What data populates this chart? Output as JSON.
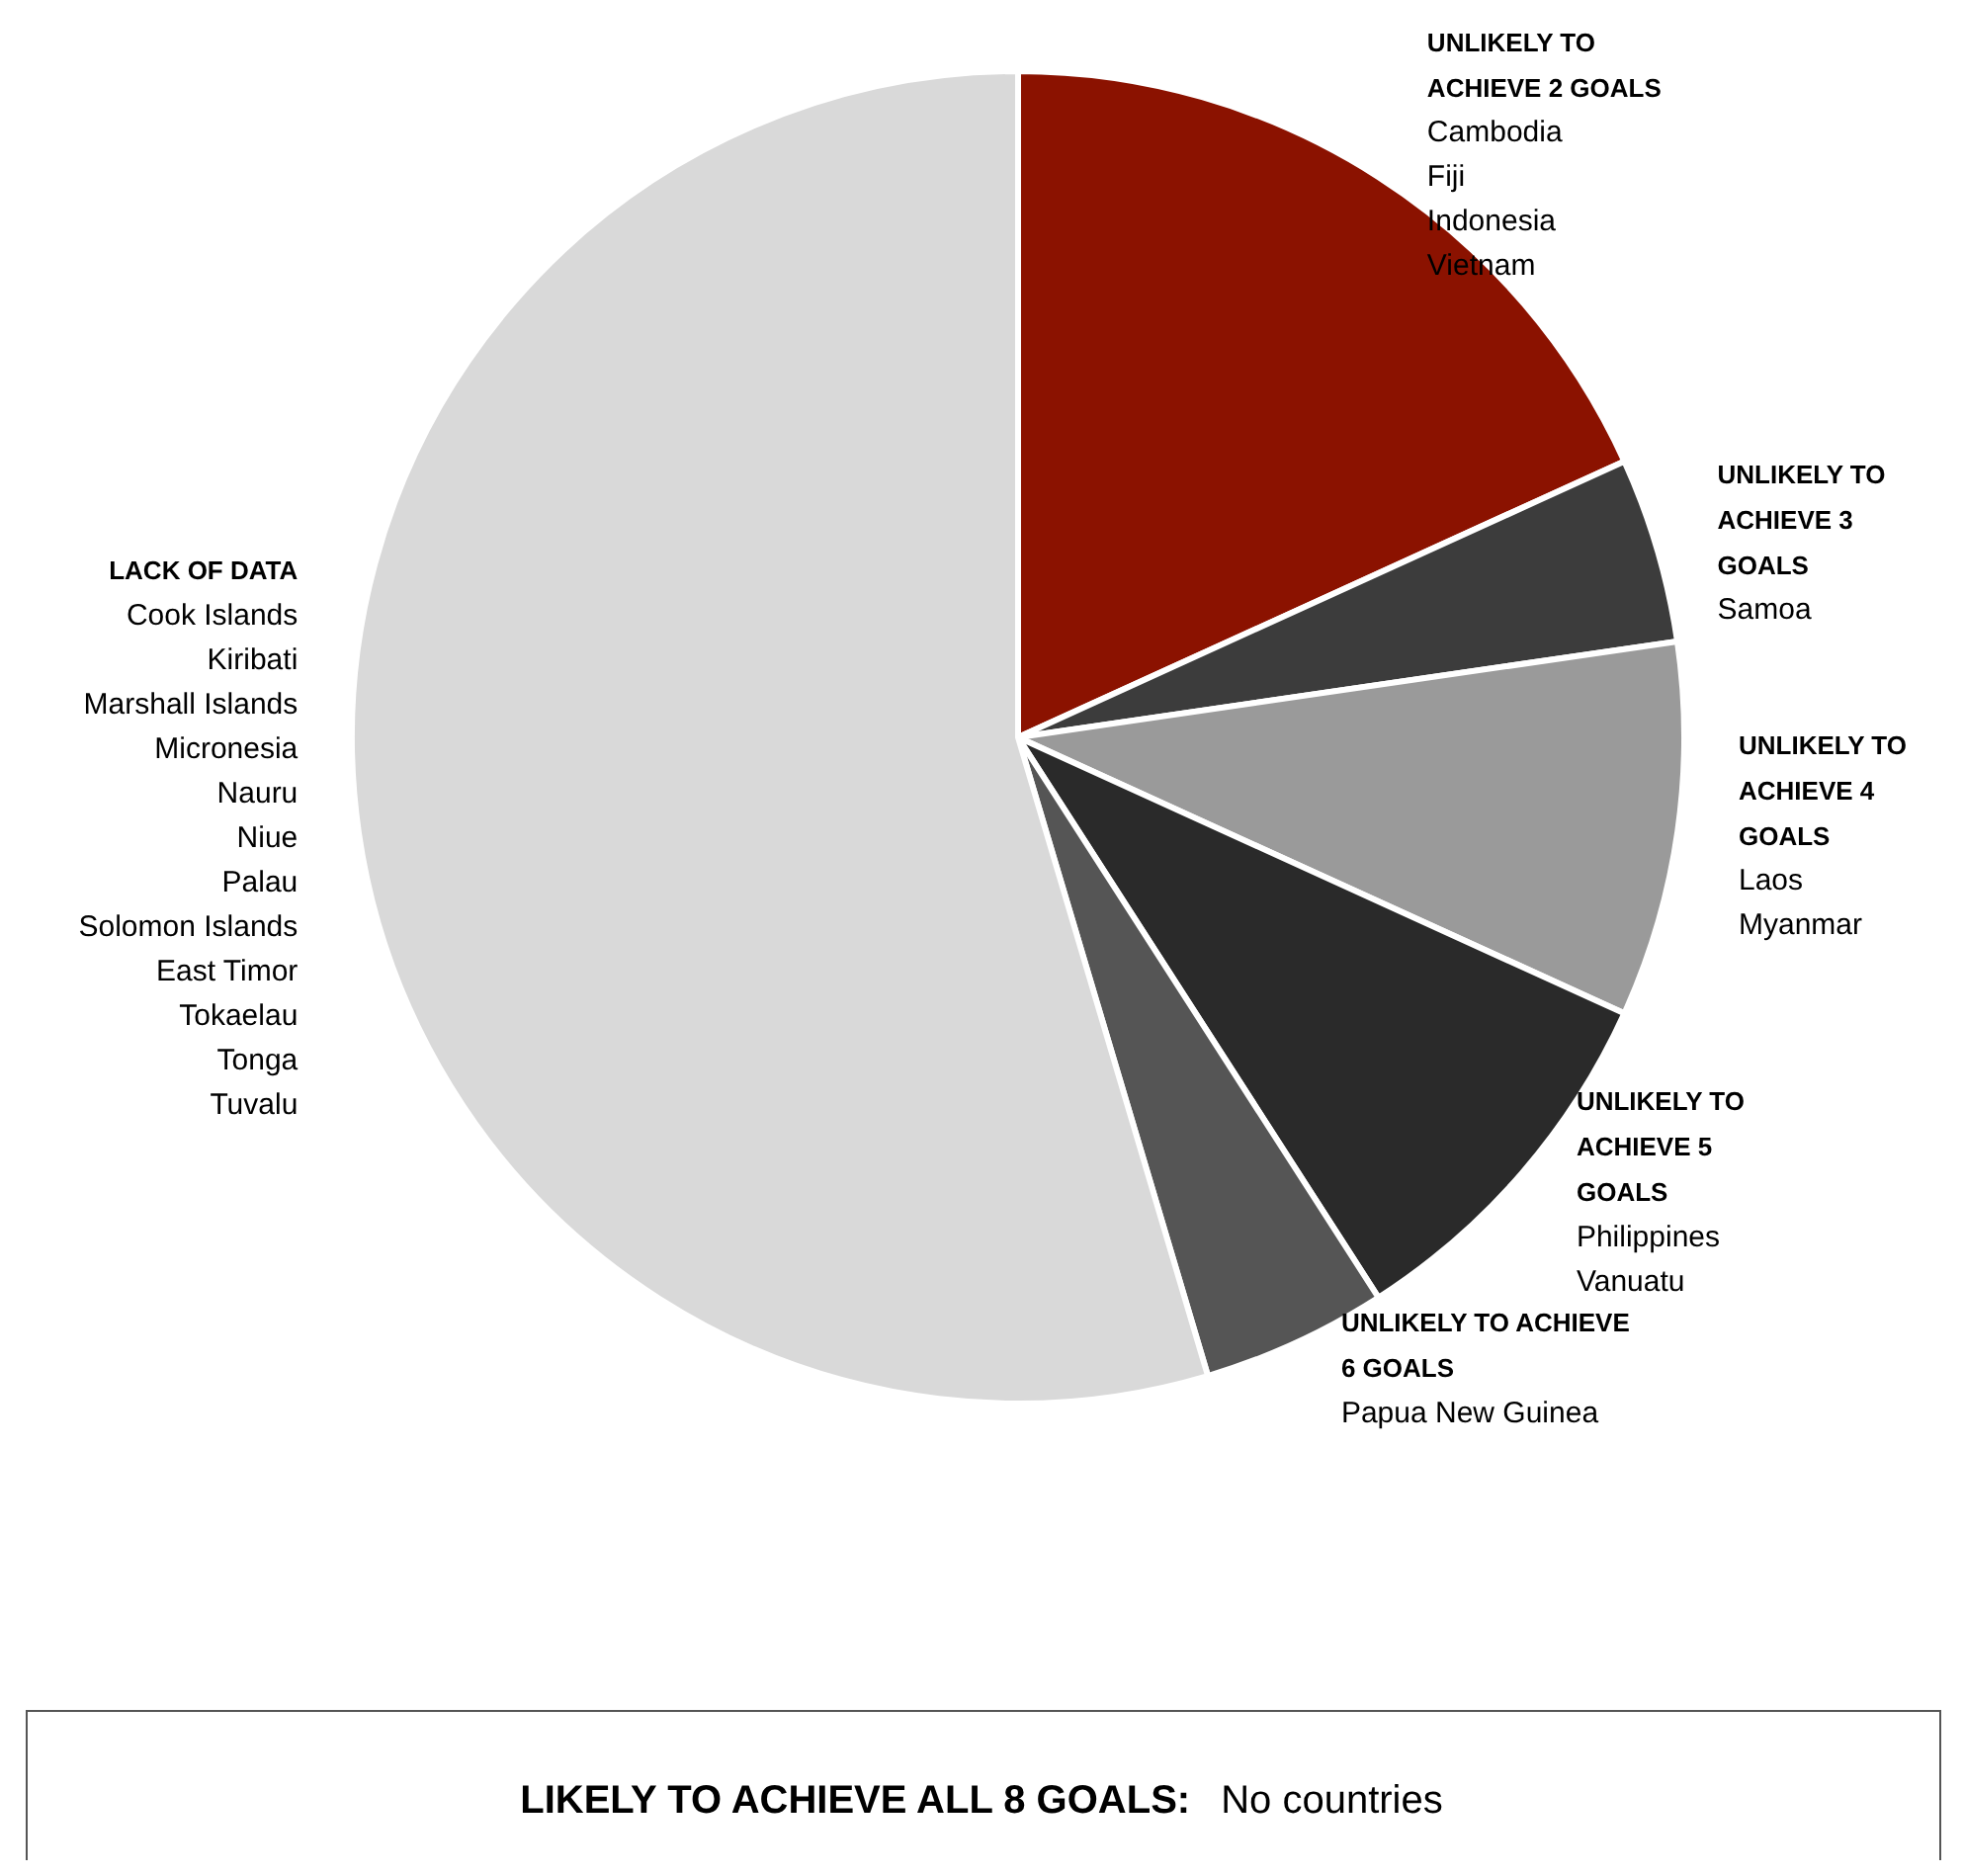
{
  "chart_data": {
    "type": "pie",
    "categories": [
      "UNLIKELY TO ACHIEVE 2 GOALS",
      "UNLIKELY TO ACHIEVE 3 GOALS",
      "UNLIKELY TO ACHIEVE 4 GOALS",
      "UNLIKELY TO ACHIEVE 5 GOALS",
      "UNLIKELY TO ACHIEVE 6 GOALS",
      "LACK OF DATA"
    ],
    "values": [
      18.2,
      4.5,
      9.1,
      9.1,
      4.5,
      54.6
    ],
    "colors": [
      "#8b1200",
      "#3c3c3c",
      "#9a9a9a",
      "#2a2a2a",
      "#555555",
      "#d9d9d9"
    ],
    "annotations": [
      {
        "text": "Cambodia\nFiji\nIndonesia\nVietnam",
        "x": "UNLIKELY TO ACHIEVE 2 GOALS"
      },
      {
        "text": "Samoa",
        "x": "UNLIKELY TO ACHIEVE 3 GOALS"
      },
      {
        "text": "Laos\nMyanmar",
        "x": "UNLIKELY TO ACHIEVE 4 GOALS"
      },
      {
        "text": "Philippines\nVanuatu",
        "x": "UNLIKELY TO ACHIEVE 5 GOALS"
      },
      {
        "text": "Papua New Guinea",
        "x": "UNLIKELY TO ACHIEVE 6 GOALS"
      },
      {
        "text": "Cook Islands\nKiribati\nMarshall Islands\nMicronesia\nNauru\nNiue\nPalau\nSolomon Islands\nEast Timor\nTokaelau\nTonga\nTuvalu",
        "x": "LACK OF DATA"
      },
      "LIKELY TO ACHIEVE ALL 8 GOALS:",
      "No countries"
    ],
    "legend": false
  }
}
